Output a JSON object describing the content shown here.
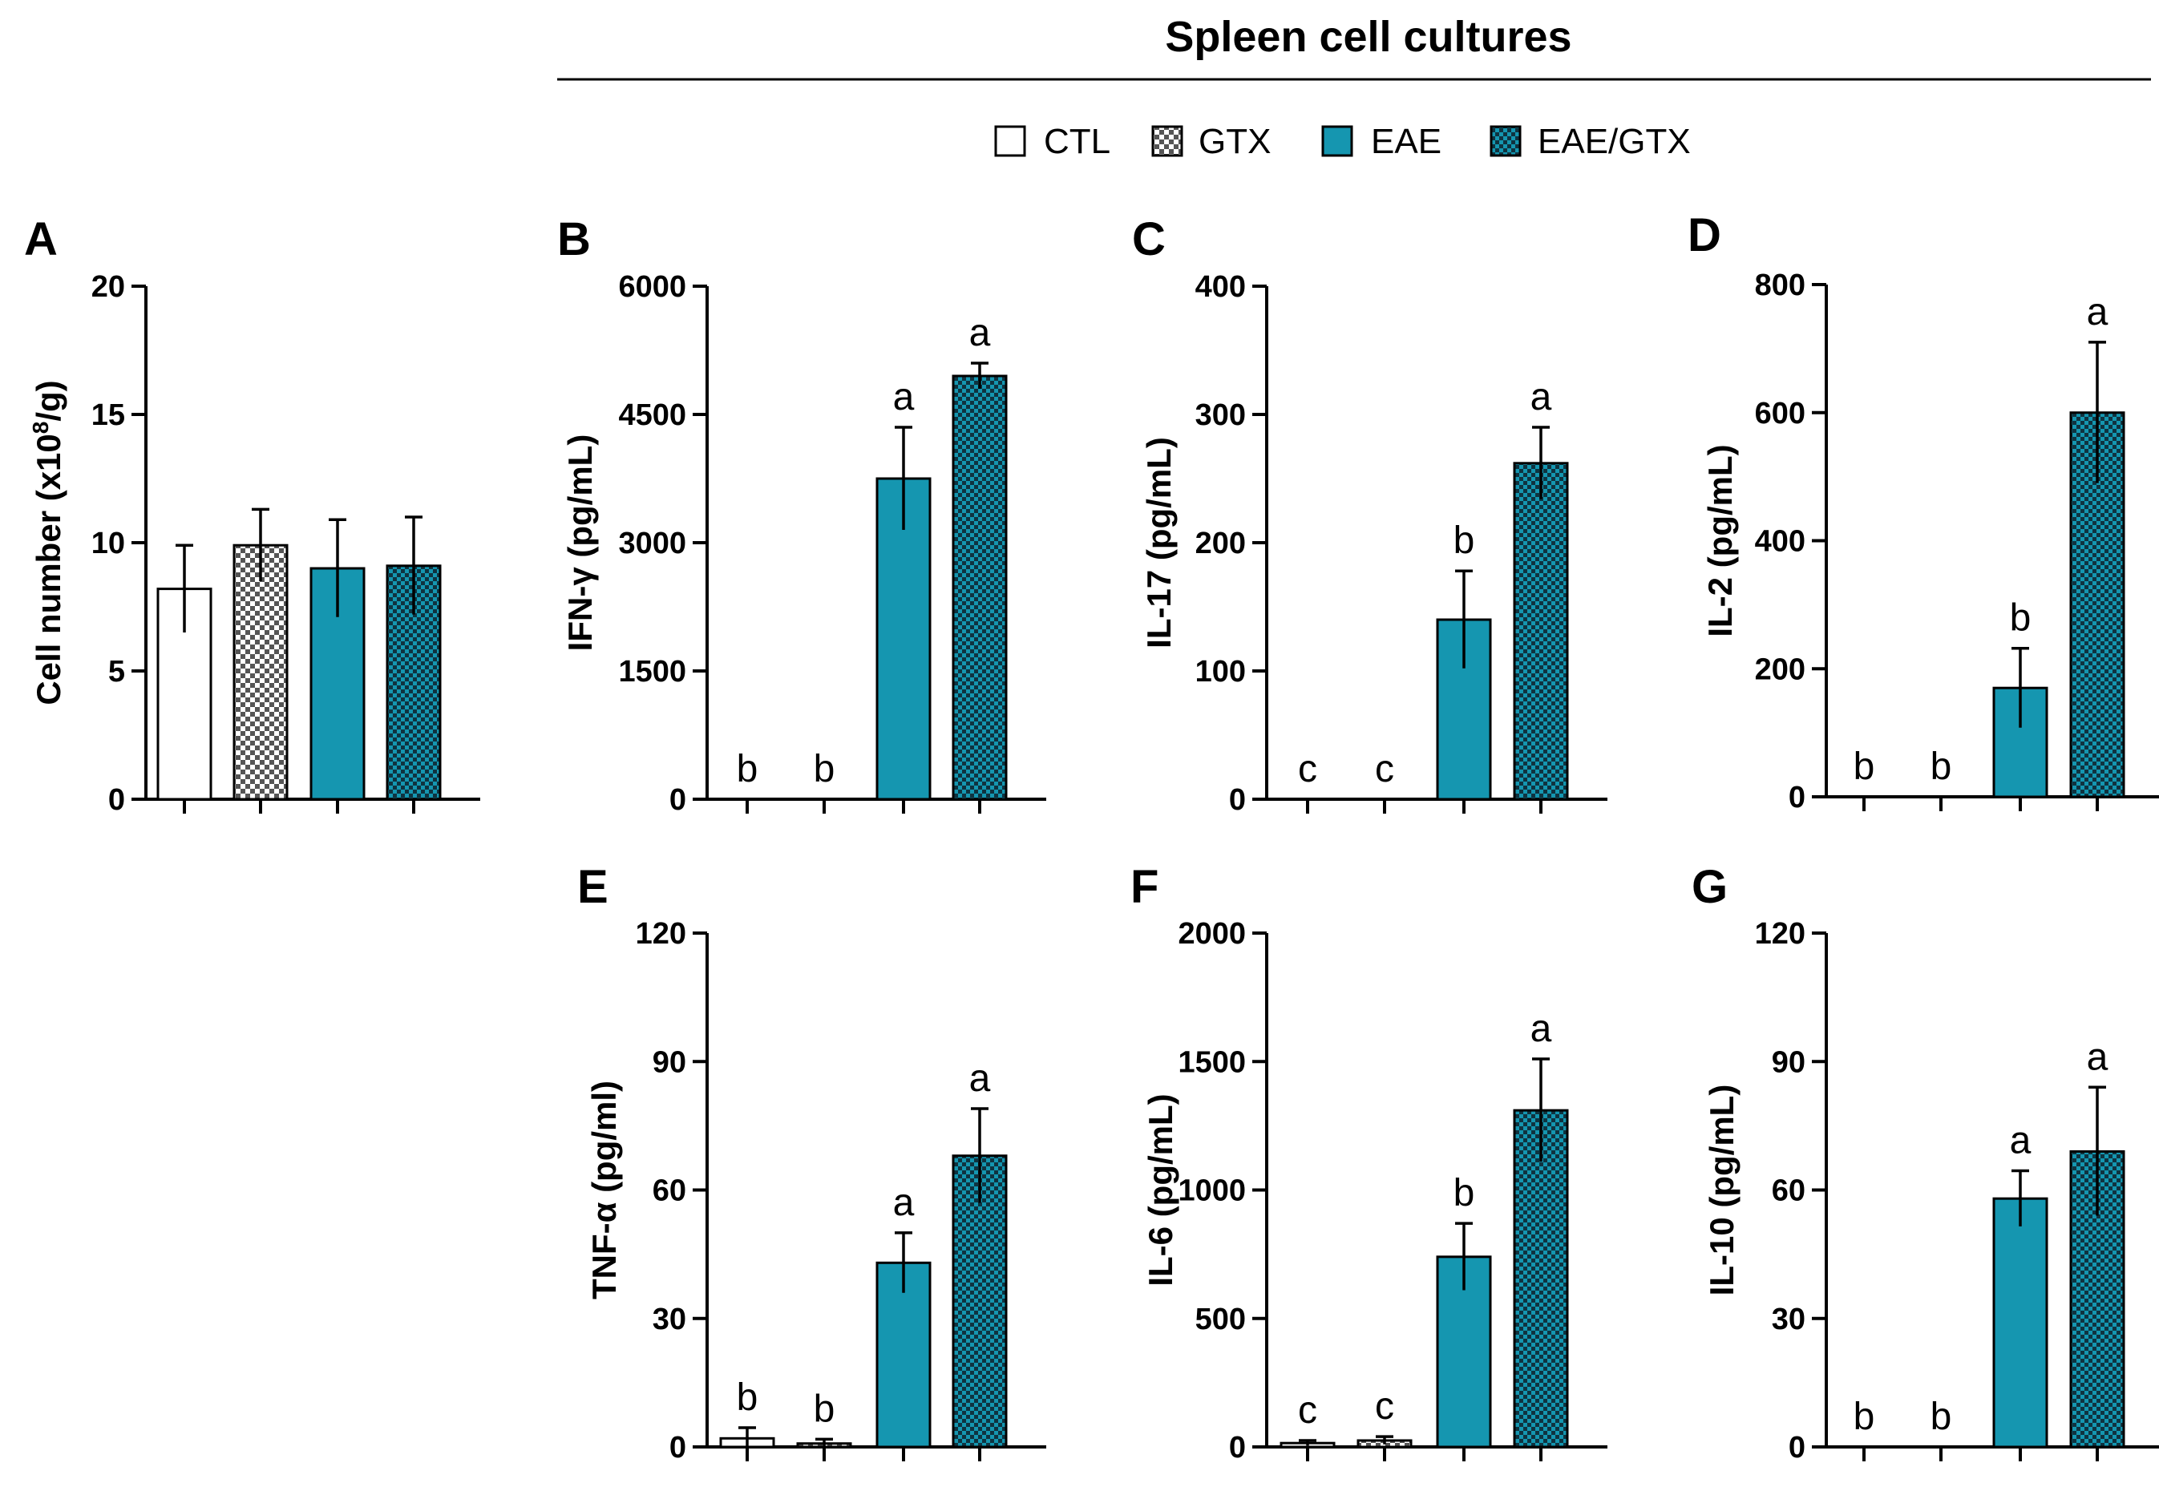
{
  "header": {
    "title": "Spleen cell cultures"
  },
  "legend": [
    {
      "label": "CTL",
      "fill": "white"
    },
    {
      "label": "GTX",
      "fill": "checker"
    },
    {
      "label": "EAE",
      "fill": "teal"
    },
    {
      "label": "EAE/GTX",
      "fill": "teal-checker"
    }
  ],
  "colors": {
    "teal": "#1596b0",
    "dark": "#0f3340",
    "axis": "#000000"
  },
  "chart_data": [
    {
      "panel": "A",
      "type": "bar",
      "ylabel": "Cell number (x10^8/g)",
      "ylim": [
        0,
        20
      ],
      "yticks": [
        0,
        5,
        10,
        15,
        20
      ],
      "categories": [
        "CTL",
        "GTX",
        "EAE",
        "EAE/GTX"
      ],
      "values": [
        8.2,
        9.9,
        9.0,
        9.1
      ],
      "errors": [
        1.7,
        1.4,
        1.9,
        1.9
      ],
      "sig": [
        "",
        "",
        "",
        ""
      ]
    },
    {
      "panel": "B",
      "type": "bar",
      "ylabel": "IFN-γ (pg/mL)",
      "ylim": [
        0,
        6000
      ],
      "yticks": [
        0,
        1500,
        3000,
        4500,
        6000
      ],
      "categories": [
        "CTL",
        "GTX",
        "EAE",
        "EAE/GTX"
      ],
      "values": [
        0,
        0,
        3750,
        4950
      ],
      "errors": [
        0,
        0,
        600,
        150
      ],
      "sig": [
        "b",
        "b",
        "a",
        "a"
      ]
    },
    {
      "panel": "C",
      "type": "bar",
      "ylabel": "IL-17 (pg/mL)",
      "ylim": [
        0,
        400
      ],
      "yticks": [
        0,
        100,
        200,
        300,
        400
      ],
      "categories": [
        "CTL",
        "GTX",
        "EAE",
        "EAE/GTX"
      ],
      "values": [
        0,
        0,
        140,
        262
      ],
      "errors": [
        0,
        0,
        38,
        28
      ],
      "sig": [
        "c",
        "c",
        "b",
        "a"
      ]
    },
    {
      "panel": "D",
      "type": "bar",
      "ylabel": "IL-2 (pg/mL)",
      "ylim": [
        0,
        800
      ],
      "yticks": [
        0,
        200,
        400,
        600,
        800
      ],
      "categories": [
        "CTL",
        "GTX",
        "EAE",
        "EAE/GTX"
      ],
      "values": [
        0,
        0,
        170,
        600
      ],
      "errors": [
        0,
        0,
        62,
        110
      ],
      "sig": [
        "b",
        "b",
        "b",
        "a"
      ]
    },
    {
      "panel": "E",
      "type": "bar",
      "ylabel": "TNF-α (pg/ml)",
      "ylim": [
        0,
        120
      ],
      "yticks": [
        0,
        30,
        60,
        90,
        120
      ],
      "categories": [
        "CTL",
        "GTX",
        "EAE",
        "EAE/GTX"
      ],
      "values": [
        2,
        0.8,
        43,
        68
      ],
      "errors": [
        2.5,
        1,
        7,
        11
      ],
      "sig": [
        "b",
        "b",
        "a",
        "a"
      ]
    },
    {
      "panel": "F",
      "type": "bar",
      "ylabel": "IL-6 (pg/mL)",
      "ylim": [
        0,
        2000
      ],
      "yticks": [
        0,
        500,
        1000,
        1500,
        2000
      ],
      "categories": [
        "CTL",
        "GTX",
        "EAE",
        "EAE/GTX"
      ],
      "values": [
        15,
        25,
        740,
        1310
      ],
      "errors": [
        10,
        15,
        130,
        200
      ],
      "sig": [
        "c",
        "c",
        "b",
        "a"
      ]
    },
    {
      "panel": "G",
      "type": "bar",
      "ylabel": "IL-10 (pg/mL)",
      "ylim": [
        0,
        120
      ],
      "yticks": [
        0,
        30,
        60,
        90,
        120
      ],
      "categories": [
        "CTL",
        "GTX",
        "EAE",
        "EAE/GTX"
      ],
      "values": [
        0,
        0,
        58,
        69
      ],
      "errors": [
        0,
        0,
        6.5,
        15
      ],
      "sig": [
        "b",
        "b",
        "a",
        "a"
      ]
    }
  ]
}
